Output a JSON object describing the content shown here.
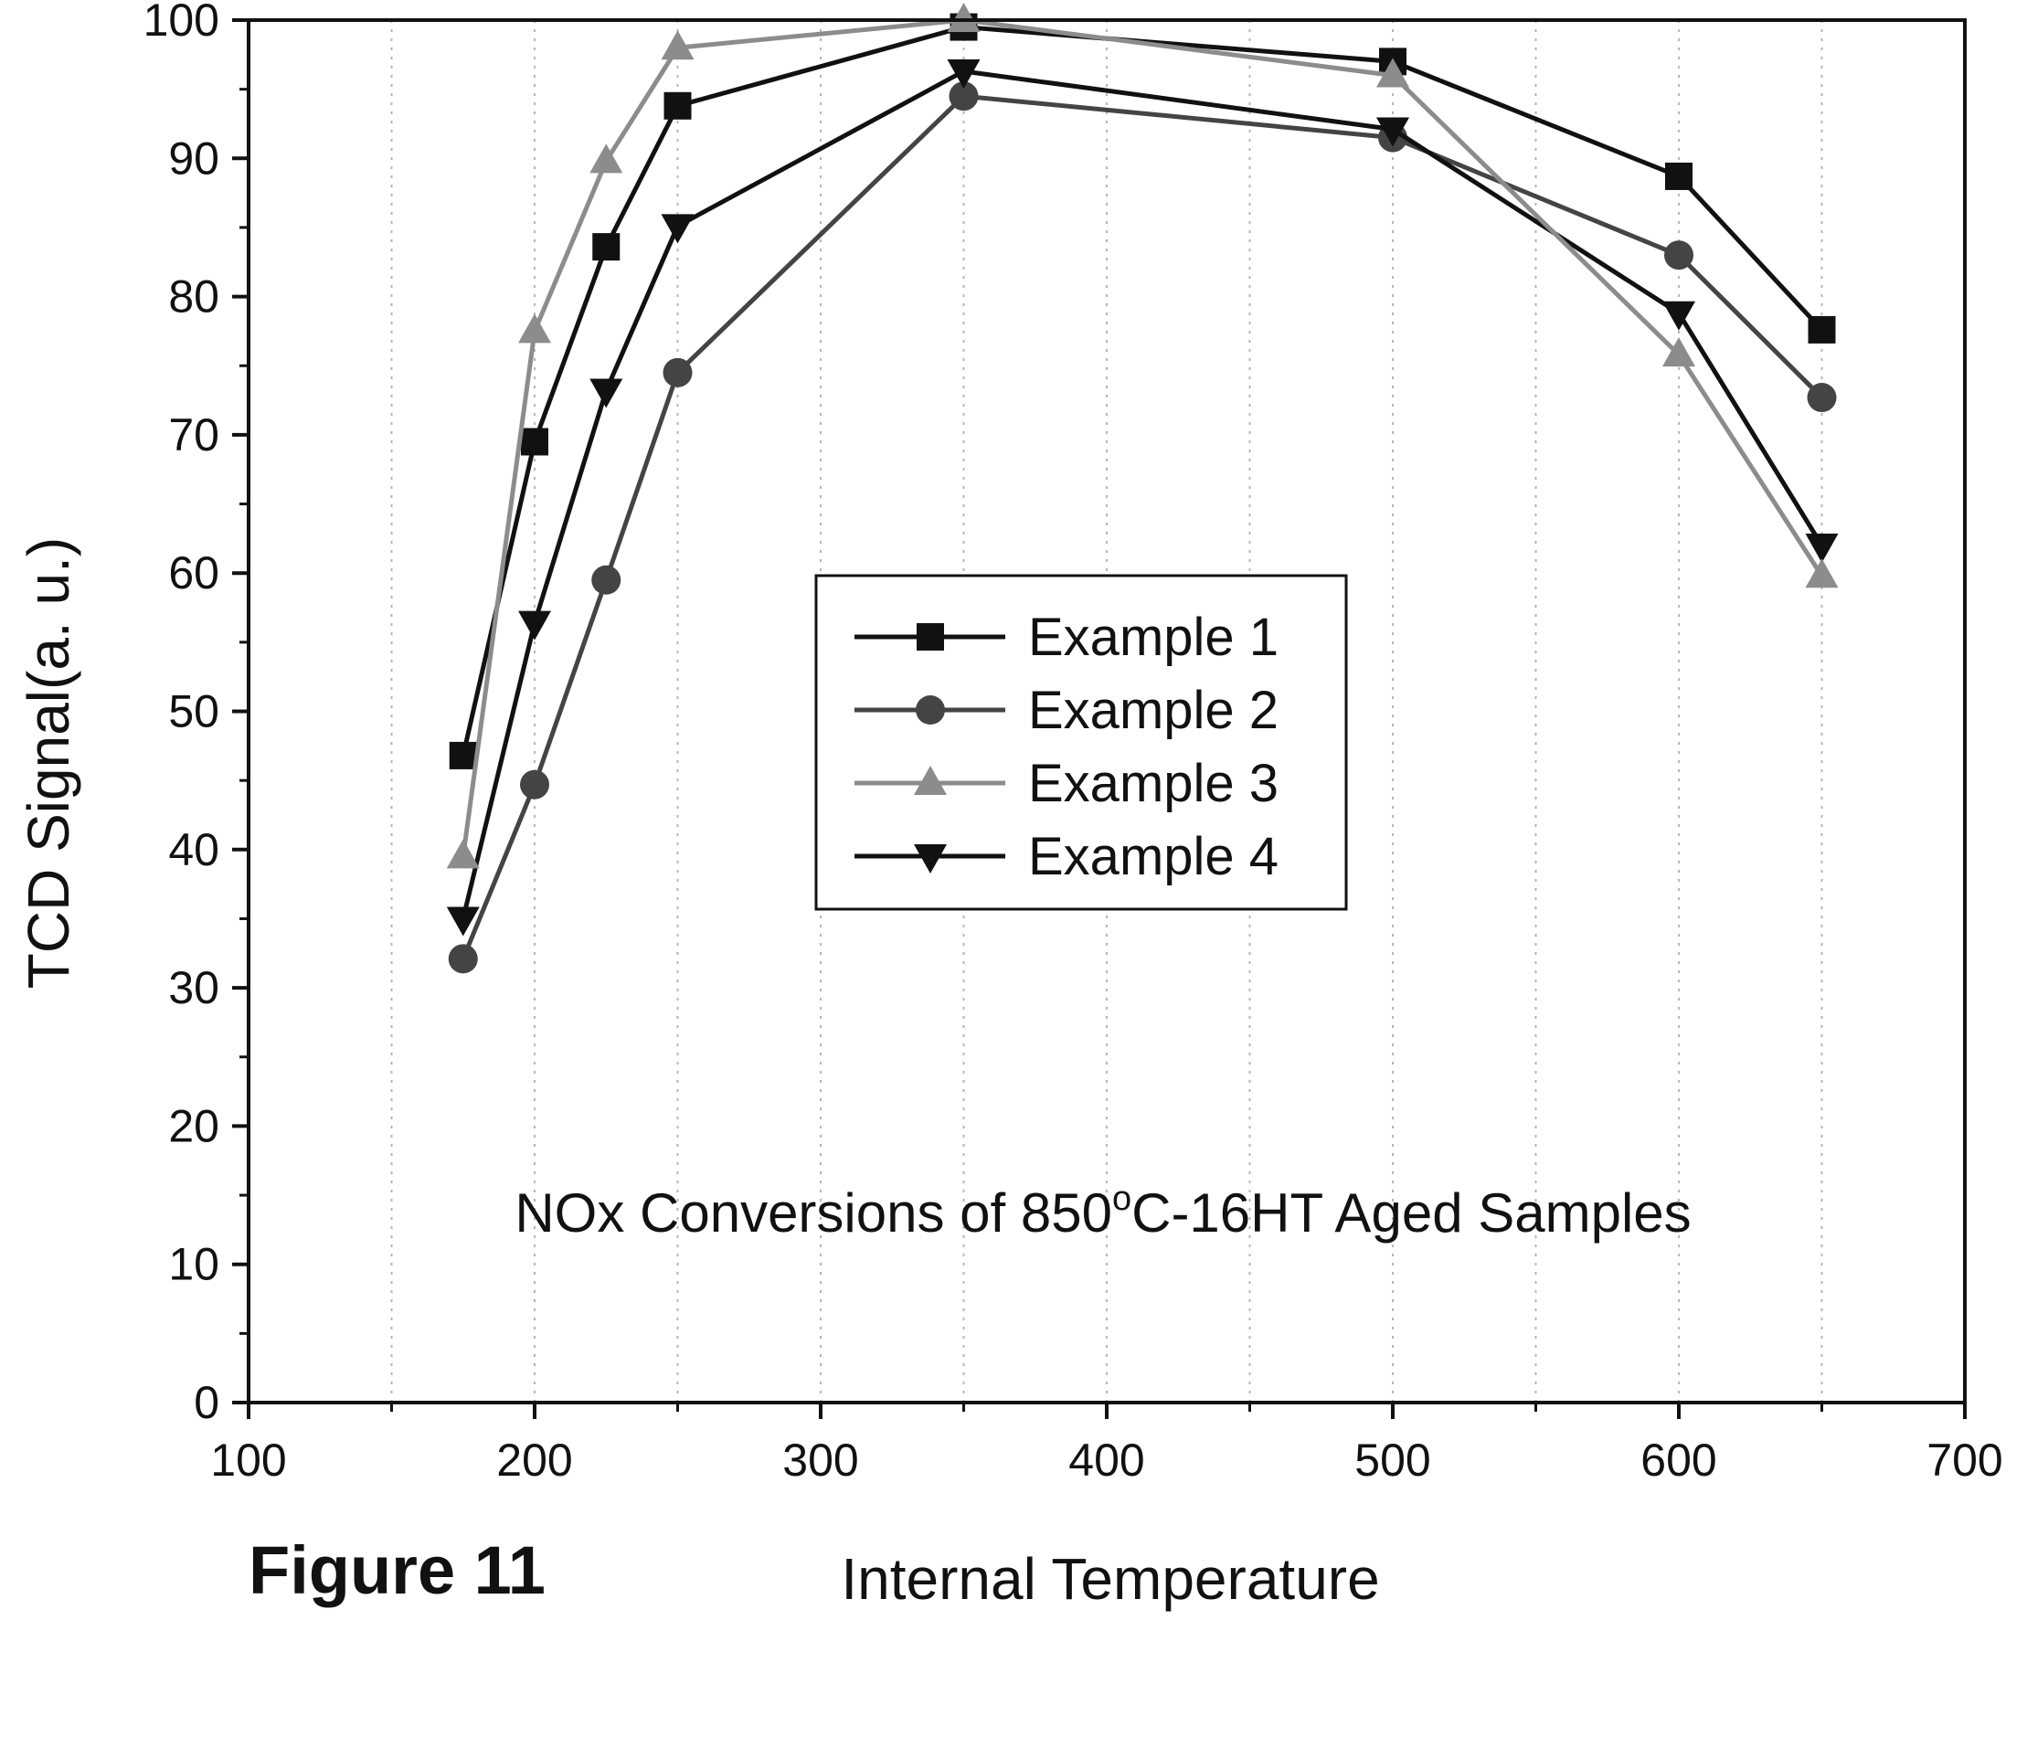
{
  "figure_caption": "Figure 11",
  "chart_data": {
    "type": "line",
    "xlabel": "Internal Temperature",
    "ylabel": "TCD Signal(a. u.)",
    "xlim": [
      100,
      700
    ],
    "ylim": [
      0,
      100
    ],
    "x_ticks": [
      100,
      200,
      300,
      400,
      500,
      600,
      700
    ],
    "y_ticks": [
      0,
      10,
      20,
      30,
      40,
      50,
      60,
      70,
      80,
      90,
      100
    ],
    "grid": "vertical dotted",
    "legend_position": "center",
    "annotation": {
      "before": "NOx Conversions of 850",
      "sup": "o",
      "after": "C-16HT Aged Samples"
    },
    "x": [
      175,
      200,
      225,
      250,
      350,
      500,
      600,
      650
    ],
    "series": [
      {
        "name": "Example 1",
        "marker": "square",
        "color": "#111111",
        "values": [
          46.8,
          69.5,
          83.6,
          93.8,
          99.5,
          97.0,
          88.7,
          77.6
        ]
      },
      {
        "name": "Example 2",
        "marker": "circle",
        "color": "#444444",
        "values": [
          32.1,
          44.7,
          59.5,
          74.5,
          94.5,
          91.5,
          83.0,
          72.7
        ]
      },
      {
        "name": "Example 3",
        "marker": "triangle-up",
        "color": "#8c8c8c",
        "values": [
          39.5,
          77.5,
          89.8,
          98.0,
          100.0,
          96.0,
          75.8,
          59.8
        ]
      },
      {
        "name": "Example 4",
        "marker": "triangle-down",
        "color": "#111111",
        "values": [
          35.0,
          56.4,
          73.2,
          85.1,
          96.3,
          92.1,
          78.8,
          62.0
        ]
      }
    ]
  }
}
